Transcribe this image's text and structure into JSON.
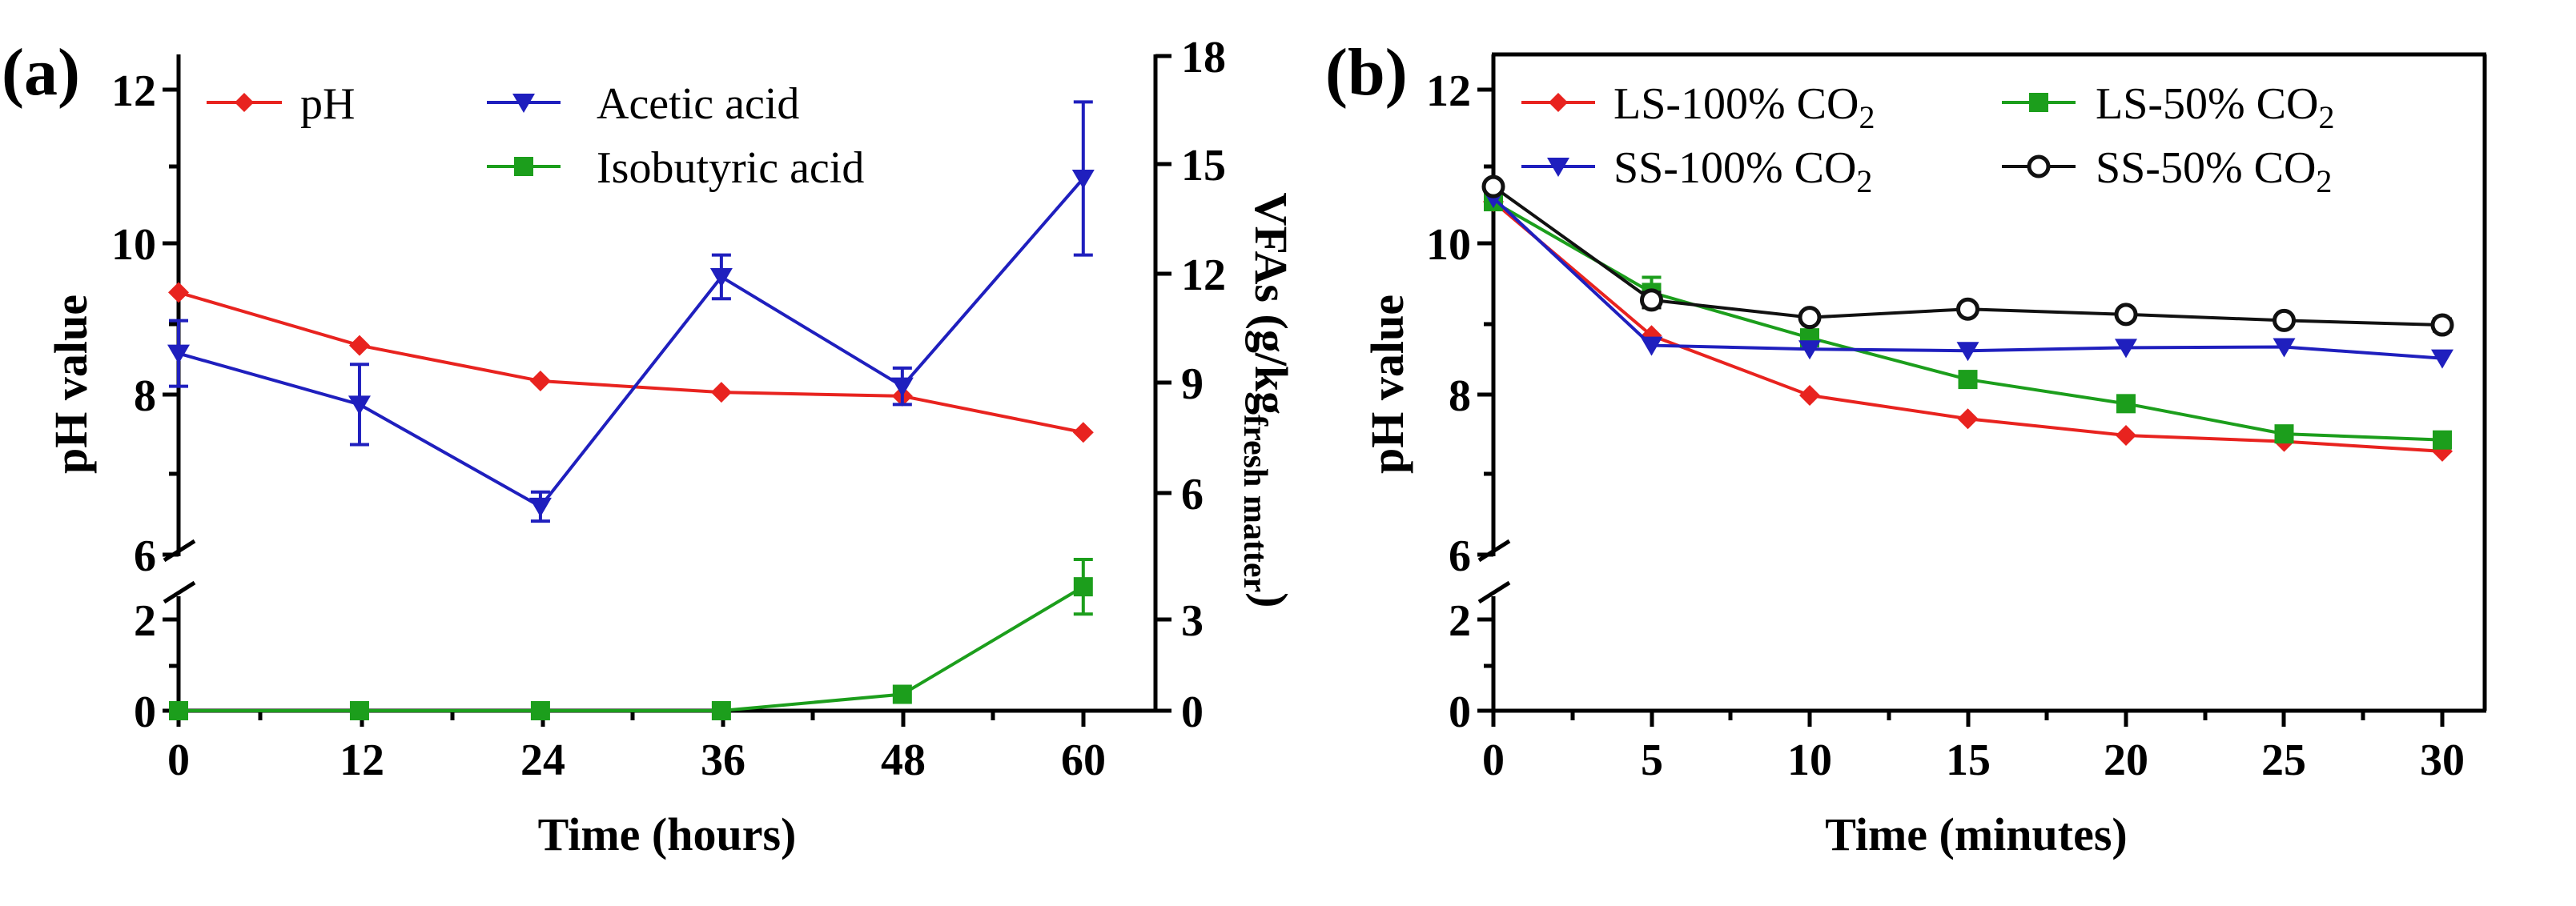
{
  "chart_data": [
    {
      "panel_label": "(a)",
      "type": "line",
      "xlabel": "Time (hours)",
      "ylabel": "pH value",
      "y2label": "VFAs (g/kg",
      "y2label_sub": "fresh matter",
      "y2label_close": ")",
      "xlim": [
        0,
        60
      ],
      "x_ticks": [
        "0",
        "12",
        "24",
        "36",
        "48",
        "60"
      ],
      "ylim": [
        0,
        12
      ],
      "y_break": [
        2,
        6
      ],
      "y_ticks": [
        "0",
        "2",
        "6",
        "8",
        "10",
        "12"
      ],
      "y2lim": [
        0,
        18
      ],
      "y2_ticks": [
        "0",
        "3",
        "6",
        "9",
        "12",
        "15",
        "18"
      ],
      "legend_position": "top",
      "series": [
        {
          "name": "pH",
          "axis": "left",
          "color": "#e8231f",
          "marker": "diamond",
          "x": [
            0,
            12,
            24,
            36,
            48,
            60
          ],
          "y": [
            9.35,
            8.65,
            8.18,
            8.03,
            7.98,
            7.5
          ]
        },
        {
          "name": "Acetic acid",
          "axis": "right",
          "color": "#1f1fbe",
          "marker": "triangle-down",
          "x": [
            0,
            12,
            24,
            36,
            48,
            60
          ],
          "y": [
            9.8,
            8.4,
            5.6,
            11.9,
            8.9,
            14.6
          ],
          "err": [
            0.9,
            1.1,
            0.4,
            0.6,
            0.5,
            2.1
          ]
        },
        {
          "name": "Isobutyric acid",
          "axis": "right",
          "color": "#1c9e1c",
          "marker": "square",
          "x": [
            0,
            12,
            24,
            36,
            48,
            60
          ],
          "y": [
            0,
            0,
            0,
            0,
            0.45,
            3.4
          ],
          "err": [
            0,
            0,
            0,
            0,
            0,
            0.75
          ]
        }
      ]
    },
    {
      "panel_label": "(b)",
      "type": "line",
      "xlabel": "Time (minutes)",
      "ylabel": "pH value",
      "xlim": [
        0,
        30
      ],
      "x_ticks": [
        "0",
        "5",
        "10",
        "15",
        "20",
        "25",
        "30"
      ],
      "ylim": [
        0,
        12
      ],
      "y_break": [
        2,
        6
      ],
      "y_ticks": [
        "0",
        "2",
        "6",
        "8",
        "10",
        "12"
      ],
      "legend_position": "top",
      "series": [
        {
          "name": "LS-100% CO",
          "name_sub": "2",
          "color": "#e8231f",
          "marker": "diamond",
          "x": [
            0,
            5,
            10,
            15,
            20,
            25,
            30
          ],
          "y": [
            10.55,
            8.78,
            7.99,
            7.68,
            7.46,
            7.38,
            7.25
          ]
        },
        {
          "name": "LS-50% CO",
          "name_sub": "2",
          "color": "#1c9e1c",
          "marker": "square",
          "x": [
            0,
            5,
            10,
            15,
            20,
            25,
            30
          ],
          "y": [
            10.55,
            9.35,
            8.75,
            8.2,
            7.88,
            7.48,
            7.4
          ],
          "err": [
            0.05,
            0.2,
            0,
            0,
            0,
            0,
            0
          ]
        },
        {
          "name": "SS-100% CO",
          "name_sub": "2",
          "color": "#1f1fbe",
          "marker": "triangle-down",
          "x": [
            0,
            5,
            10,
            15,
            20,
            25,
            30
          ],
          "y": [
            10.6,
            8.65,
            8.6,
            8.58,
            8.62,
            8.63,
            8.48
          ]
        },
        {
          "name": "SS-50% CO",
          "name_sub": "2",
          "color": "#111111",
          "marker": "circle-open",
          "x": [
            0,
            5,
            10,
            15,
            20,
            25,
            30
          ],
          "y": [
            10.75,
            9.25,
            9.02,
            9.13,
            9.06,
            8.98,
            8.92
          ],
          "err": [
            0.05,
            0.1,
            0,
            0,
            0,
            0,
            0.08
          ]
        }
      ]
    }
  ]
}
